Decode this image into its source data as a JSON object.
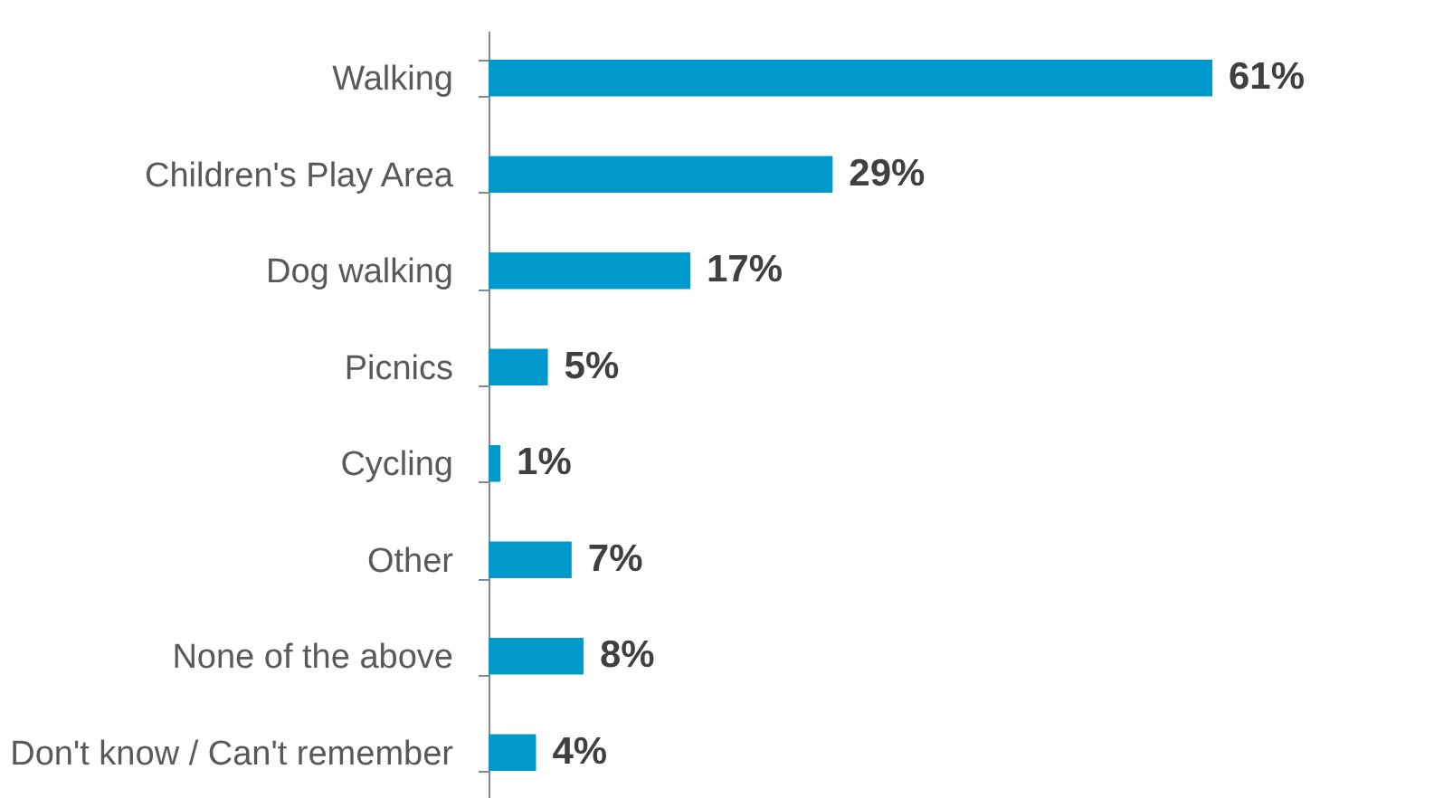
{
  "chart_data": {
    "type": "bar",
    "orientation": "horizontal",
    "categories": [
      "Walking",
      "Children's Play Area",
      "Dog walking",
      "Picnics",
      "Cycling",
      "Other",
      "None of the above",
      "Don't know / Can't remember"
    ],
    "values": [
      61,
      29,
      17,
      5,
      1,
      7,
      8,
      4
    ],
    "color": "#0099cc",
    "value_labels": [
      "61%",
      "29%",
      "17%",
      "5%",
      "1%",
      "7%",
      "8%",
      "4%"
    ]
  }
}
